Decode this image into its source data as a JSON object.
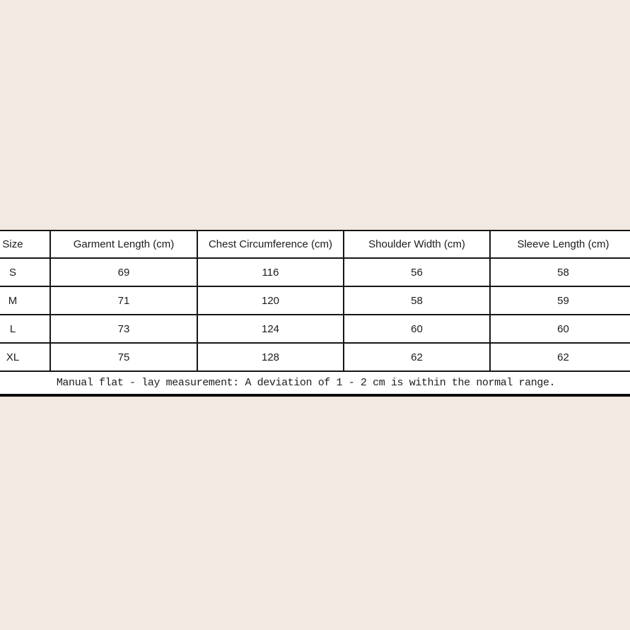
{
  "page": {
    "background": "#f1e9e2",
    "table_bg": "#ffffff",
    "border_color": "#161616",
    "text_color": "#1c1c1c",
    "thick_line_color": "#0b0b0b"
  },
  "chart_data": {
    "type": "table",
    "title": "",
    "columns": [
      "Size",
      "Garment Length (cm)",
      "Chest Circumference (cm)",
      "Shoulder Width (cm)",
      "Sleeve Length (cm)"
    ],
    "rows": [
      [
        "S",
        "69",
        "116",
        "56",
        "58"
      ],
      [
        "M",
        "71",
        "120",
        "58",
        "59"
      ],
      [
        "L",
        "73",
        "124",
        "60",
        "60"
      ],
      [
        "XL",
        "75",
        "128",
        "62",
        "62"
      ]
    ],
    "note": "Manual flat - lay measurement: A deviation of 1 - 2 cm is within the normal range.",
    "layout": {
      "grid": "full-borders",
      "note_row_spans_all_columns": true,
      "table_bleeds_past_left_and_right_edges": true
    }
  }
}
